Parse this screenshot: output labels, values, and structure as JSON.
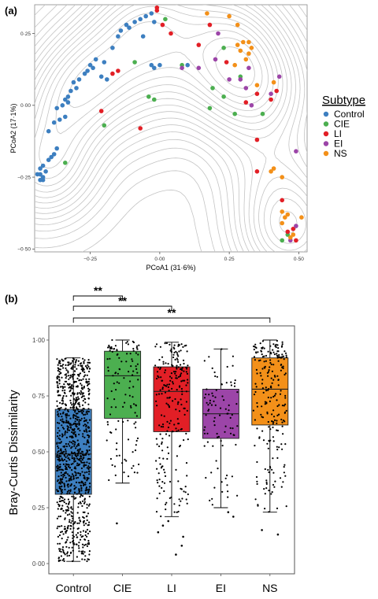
{
  "panels": {
    "a_label": "(a)",
    "b_label": "(b)"
  },
  "colors": {
    "Control": "#3d7fc0",
    "CIE": "#4caf50",
    "LI": "#e21f26",
    "EI": "#9c45a8",
    "NS": "#f39019",
    "contour": "#c4c4c4",
    "dots": "#000000"
  },
  "chart_data": [
    {
      "type": "scatter",
      "title": "",
      "xlabel": "PCoA1 (31·6%)",
      "ylabel": "PCoA2 (17·1%)",
      "xlim": [
        -0.45,
        0.53
      ],
      "ylim": [
        -0.51,
        0.35
      ],
      "xticks": [
        -0.25,
        0.0,
        0.25,
        0.5
      ],
      "xtick_labels": [
        "−0·25",
        "0·00",
        "0·25",
        "0·50"
      ],
      "yticks": [
        -0.5,
        -0.25,
        0.0,
        0.25
      ],
      "ytick_labels": [
        "−0·50",
        "−0·25",
        "0·00",
        "0·25"
      ],
      "grid": false,
      "density_contours": true,
      "legend": {
        "title": "Subtype",
        "position": "right",
        "entries": [
          "Control",
          "CIE",
          "LI",
          "EI",
          "NS"
        ]
      },
      "series": [
        {
          "name": "Control",
          "points": [
            [
              -0.43,
              -0.22
            ],
            [
              -0.43,
              -0.24
            ],
            [
              -0.42,
              -0.26
            ],
            [
              -0.42,
              -0.21
            ],
            [
              -0.43,
              -0.26
            ],
            [
              -0.42,
              -0.25
            ],
            [
              -0.44,
              -0.24
            ],
            [
              -0.41,
              -0.23
            ],
            [
              -0.4,
              -0.19
            ],
            [
              -0.39,
              -0.18
            ],
            [
              -0.38,
              -0.17
            ],
            [
              -0.37,
              -0.15
            ],
            [
              -0.4,
              -0.09
            ],
            [
              -0.38,
              -0.06
            ],
            [
              -0.36,
              -0.05
            ],
            [
              -0.34,
              -0.04
            ],
            [
              -0.37,
              -0.01
            ],
            [
              -0.35,
              0.0
            ],
            [
              -0.34,
              0.02
            ],
            [
              -0.33,
              0.03
            ],
            [
              -0.32,
              0.05
            ],
            [
              -0.3,
              0.06
            ],
            [
              -0.31,
              0.08
            ],
            [
              -0.29,
              0.09
            ],
            [
              -0.27,
              0.11
            ],
            [
              -0.26,
              0.12
            ],
            [
              -0.25,
              0.14
            ],
            [
              -0.23,
              0.16
            ],
            [
              -0.24,
              0.13
            ],
            [
              -0.21,
              0.1
            ],
            [
              -0.19,
              0.09
            ],
            [
              -0.17,
              0.2
            ],
            [
              -0.15,
              0.24
            ],
            [
              -0.14,
              0.26
            ],
            [
              -0.12,
              0.28
            ],
            [
              -0.11,
              0.27
            ],
            [
              -0.09,
              0.29
            ],
            [
              -0.07,
              0.3
            ],
            [
              -0.05,
              0.31
            ],
            [
              -0.03,
              0.32
            ],
            [
              -0.02,
              0.29
            ],
            [
              -0.06,
              0.24
            ],
            [
              -0.03,
              0.14
            ],
            [
              -0.02,
              0.13
            ],
            [
              0.0,
              0.14
            ],
            [
              0.1,
              0.14
            ],
            [
              -0.33,
              0.01
            ],
            [
              -0.2,
              0.15
            ]
          ]
        },
        {
          "name": "CIE",
          "points": [
            [
              -0.34,
              -0.2
            ],
            [
              -0.2,
              -0.07
            ],
            [
              -0.09,
              0.15
            ],
            [
              -0.04,
              0.03
            ],
            [
              0.02,
              0.3
            ],
            [
              0.08,
              0.14
            ],
            [
              0.18,
              -0.01
            ],
            [
              0.19,
              0.06
            ],
            [
              0.23,
              0.03
            ],
            [
              0.27,
              -0.03
            ],
            [
              0.29,
              0.1
            ],
            [
              0.23,
              0.2
            ],
            [
              0.37,
              -0.03
            ],
            [
              0.44,
              -0.47
            ],
            [
              0.46,
              -0.45
            ],
            [
              -0.02,
              0.02
            ]
          ]
        },
        {
          "name": "LI",
          "points": [
            [
              -0.21,
              -0.02
            ],
            [
              -0.17,
              0.11
            ],
            [
              -0.15,
              0.12
            ],
            [
              -0.07,
              -0.08
            ],
            [
              -0.01,
              0.34
            ],
            [
              -0.01,
              0.33
            ],
            [
              0.01,
              0.28
            ],
            [
              0.04,
              0.25
            ],
            [
              0.09,
              0.36
            ],
            [
              0.14,
              0.21
            ],
            [
              0.18,
              0.28
            ],
            [
              0.24,
              0.15
            ],
            [
              0.31,
              0.01
            ],
            [
              0.35,
              -0.12
            ],
            [
              0.35,
              0.04
            ],
            [
              0.42,
              0.05
            ],
            [
              0.35,
              -0.23
            ],
            [
              0.44,
              -0.33
            ],
            [
              0.46,
              -0.44
            ],
            [
              0.48,
              -0.43
            ],
            [
              0.49,
              -0.47
            ],
            [
              0.4,
              0.02
            ]
          ]
        },
        {
          "name": "EI",
          "points": [
            [
              0.08,
              0.13
            ],
            [
              0.14,
              0.13
            ],
            [
              0.25,
              0.09
            ],
            [
              0.29,
              0.09
            ],
            [
              0.31,
              0.06
            ],
            [
              0.21,
              0.25
            ],
            [
              0.33,
              0.0
            ],
            [
              0.43,
              0.1
            ],
            [
              0.4,
              0.04
            ],
            [
              0.49,
              -0.16
            ],
            [
              0.49,
              -0.42
            ],
            [
              0.47,
              -0.47
            ],
            [
              0.2,
              0.16
            ],
            [
              0.32,
              0.13
            ]
          ]
        },
        {
          "name": "NS",
          "points": [
            [
              0.17,
              0.32
            ],
            [
              0.22,
              0.36
            ],
            [
              0.25,
              0.31
            ],
            [
              0.28,
              0.28
            ],
            [
              0.28,
              0.21
            ],
            [
              0.29,
              0.19
            ],
            [
              0.31,
              0.16
            ],
            [
              0.32,
              0.22
            ],
            [
              0.33,
              0.2
            ],
            [
              0.27,
              0.14
            ],
            [
              0.3,
              0.22
            ],
            [
              0.35,
              0.07
            ],
            [
              0.41,
              0.08
            ],
            [
              0.44,
              -0.25
            ],
            [
              0.41,
              -0.22
            ],
            [
              0.44,
              -0.37
            ],
            [
              0.46,
              -0.38
            ],
            [
              0.45,
              -0.39
            ],
            [
              0.51,
              -0.39
            ],
            [
              0.48,
              -0.45
            ],
            [
              0.47,
              -0.46
            ],
            [
              0.32,
              0.18
            ],
            [
              0.4,
              -0.23
            ],
            [
              0.44,
              -0.41
            ]
          ]
        }
      ]
    },
    {
      "type": "box",
      "title": "",
      "xlabel": "",
      "ylabel": "Bray-Curtis Dissimilarity",
      "categories": [
        "Control",
        "CIE",
        "LI",
        "EI",
        "NS"
      ],
      "ylim": [
        0.0,
        1.0
      ],
      "yticks": [
        0.0,
        0.25,
        0.5,
        0.75,
        1.0
      ],
      "ytick_labels": [
        "0·00",
        "0·25",
        "0·50",
        "0·75",
        "1·00"
      ],
      "grid": false,
      "boxes": [
        {
          "name": "Control",
          "q1": 0.31,
          "median": 0.49,
          "q3": 0.69,
          "whisker_low": 0.01,
          "whisker_high": 0.92,
          "n_points": 1000,
          "outliers": []
        },
        {
          "name": "CIE",
          "q1": 0.65,
          "median": 0.84,
          "q3": 0.95,
          "whisker_low": 0.36,
          "whisker_high": 1.0,
          "n_points": 120,
          "outliers": [
            0.18
          ]
        },
        {
          "name": "LI",
          "q1": 0.59,
          "median": 0.77,
          "q3": 0.88,
          "whisker_low": 0.21,
          "whisker_high": 0.99,
          "n_points": 230,
          "outliers": [
            0.04,
            0.08,
            0.12,
            0.14,
            0.17,
            0.19
          ]
        },
        {
          "name": "EI",
          "q1": 0.56,
          "median": 0.67,
          "q3": 0.78,
          "whisker_low": 0.25,
          "whisker_high": 0.96,
          "n_points": 90,
          "outliers": [
            0.21,
            0.23
          ]
        },
        {
          "name": "NS",
          "q1": 0.62,
          "median": 0.78,
          "q3": 0.92,
          "whisker_low": 0.23,
          "whisker_high": 1.0,
          "n_points": 230,
          "outliers": [
            0.13,
            0.15
          ]
        }
      ],
      "significance": [
        {
          "from": "Control",
          "to": "CIE",
          "label": "**"
        },
        {
          "from": "Control",
          "to": "LI",
          "label": "**"
        },
        {
          "from": "Control",
          "to": "NS",
          "label": "**"
        }
      ]
    }
  ]
}
